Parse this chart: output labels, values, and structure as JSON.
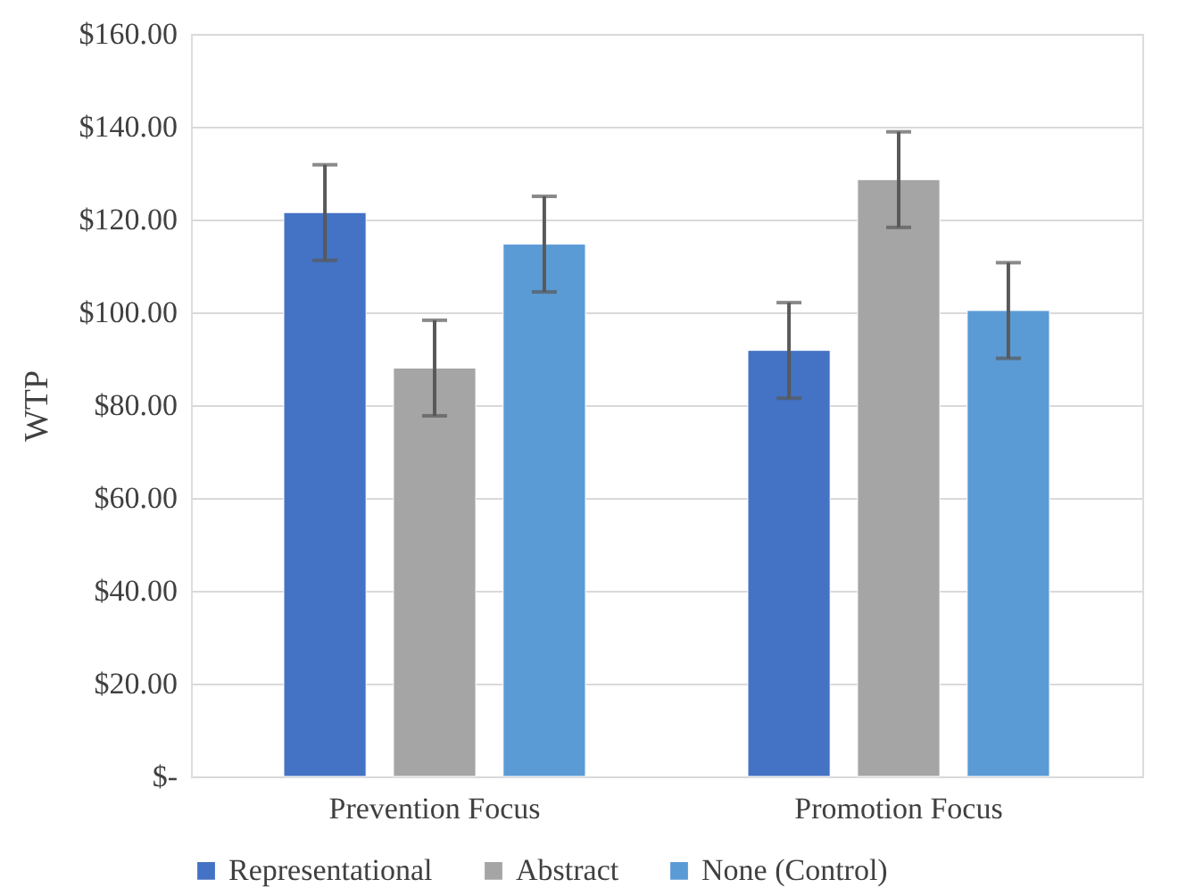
{
  "chart_data": {
    "type": "bar",
    "ylabel": "WTP",
    "categories": [
      "Prevention Focus",
      "Promotion Focus"
    ],
    "series": [
      {
        "name": "Representational",
        "color": "#4472c4",
        "values": [
          121.5,
          91.8
        ],
        "errors": [
          10.3,
          10.3
        ]
      },
      {
        "name": "Abstract",
        "color": "#a5a5a5",
        "values": [
          88.0,
          128.6
        ],
        "errors": [
          10.3,
          10.3
        ]
      },
      {
        "name": "None (Control)",
        "color": "#5b9bd5",
        "values": [
          114.7,
          100.4
        ],
        "errors": [
          10.3,
          10.3
        ]
      }
    ],
    "ylim": [
      0,
      160
    ],
    "yticks": [
      {
        "value": 0,
        "label": "$-"
      },
      {
        "value": 20,
        "label": "$20.00"
      },
      {
        "value": 40,
        "label": "$40.00"
      },
      {
        "value": 60,
        "label": "$60.00"
      },
      {
        "value": 80,
        "label": "$80.00"
      },
      {
        "value": 100,
        "label": "$100.00"
      },
      {
        "value": 120,
        "label": "$120.00"
      },
      {
        "value": 140,
        "label": "$140.00"
      },
      {
        "value": 160,
        "label": "$160.00"
      }
    ],
    "grid": "y",
    "legend": "bottom"
  }
}
